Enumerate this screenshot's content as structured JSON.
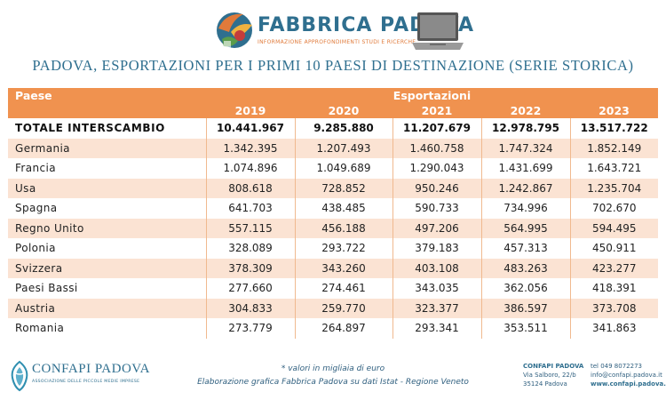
{
  "brand": {
    "name": "FABBRICA PADOVA",
    "tagline": "INFORMAZIONE APPROFONDIMENTI STUDI E RICERCHE"
  },
  "title": "PADOVA, ESPORTAZIONI PER I PRIMI 10 PAESI DI DESTINAZIONE (SERIE STORICA)",
  "table": {
    "col_paese": "Paese",
    "col_group": "Esportazioni",
    "years": [
      "2019",
      "2020",
      "2021",
      "2022",
      "2023"
    ],
    "rows": [
      {
        "name": "TOTALE INTERSCAMBIO",
        "values": [
          "10.441.967",
          "9.285.880",
          "11.207.679",
          "12.978.795",
          "13.517.722"
        ]
      },
      {
        "name": "Germania",
        "values": [
          "1.342.395",
          "1.207.493",
          "1.460.758",
          "1.747.324",
          "1.852.149"
        ]
      },
      {
        "name": "Francia",
        "values": [
          "1.074.896",
          "1.049.689",
          "1.290.043",
          "1.431.699",
          "1.643.721"
        ]
      },
      {
        "name": "Usa",
        "values": [
          "808.618",
          "728.852",
          "950.246",
          "1.242.867",
          "1.235.704"
        ]
      },
      {
        "name": "Spagna",
        "values": [
          "641.703",
          "438.485",
          "590.733",
          "734.996",
          "702.670"
        ]
      },
      {
        "name": "Regno Unito",
        "values": [
          "557.115",
          "456.188",
          "497.206",
          "564.995",
          "594.495"
        ]
      },
      {
        "name": "Polonia",
        "values": [
          "328.089",
          "293.722",
          "379.183",
          "457.313",
          "450.911"
        ]
      },
      {
        "name": "Svizzera",
        "values": [
          "378.309",
          "343.260",
          "403.108",
          "483.263",
          "423.277"
        ]
      },
      {
        "name": "Paesi Bassi",
        "values": [
          "277.660",
          "274.461",
          "343.035",
          "362.056",
          "418.391"
        ]
      },
      {
        "name": "Austria",
        "values": [
          "304.833",
          "259.770",
          "323.377",
          "386.597",
          "373.708"
        ]
      },
      {
        "name": "Romania",
        "values": [
          "273.779",
          "264.897",
          "293.341",
          "353.511",
          "341.863"
        ]
      }
    ]
  },
  "footer": {
    "confapi_name": "CONFAPI PADOVA",
    "confapi_sub": "ASSOCIAZIONE DELLE PICCOLE MEDIE IMPRESE",
    "note_units": "* valori in migliaia di euro",
    "note_source": "Elaborazione grafica Fabbrica Padova su dati Istat - Regione Veneto",
    "contact_title": "CONFAPI PADOVA",
    "address_line1": "Via Salboro, 22/b",
    "address_line2": "35124 Padova",
    "tel": "tel 049 8072273",
    "email": "info@confapi.padova.it",
    "web": "www.confapi.padova.it"
  },
  "colors": {
    "header_orange": "#f0924f",
    "row_stripe": "#fbe3d3",
    "title_blue": "#2f6f8f"
  },
  "icons": [
    "fabbrica-padova-logo-icon",
    "laptop-icon",
    "confapi-logo-icon"
  ]
}
